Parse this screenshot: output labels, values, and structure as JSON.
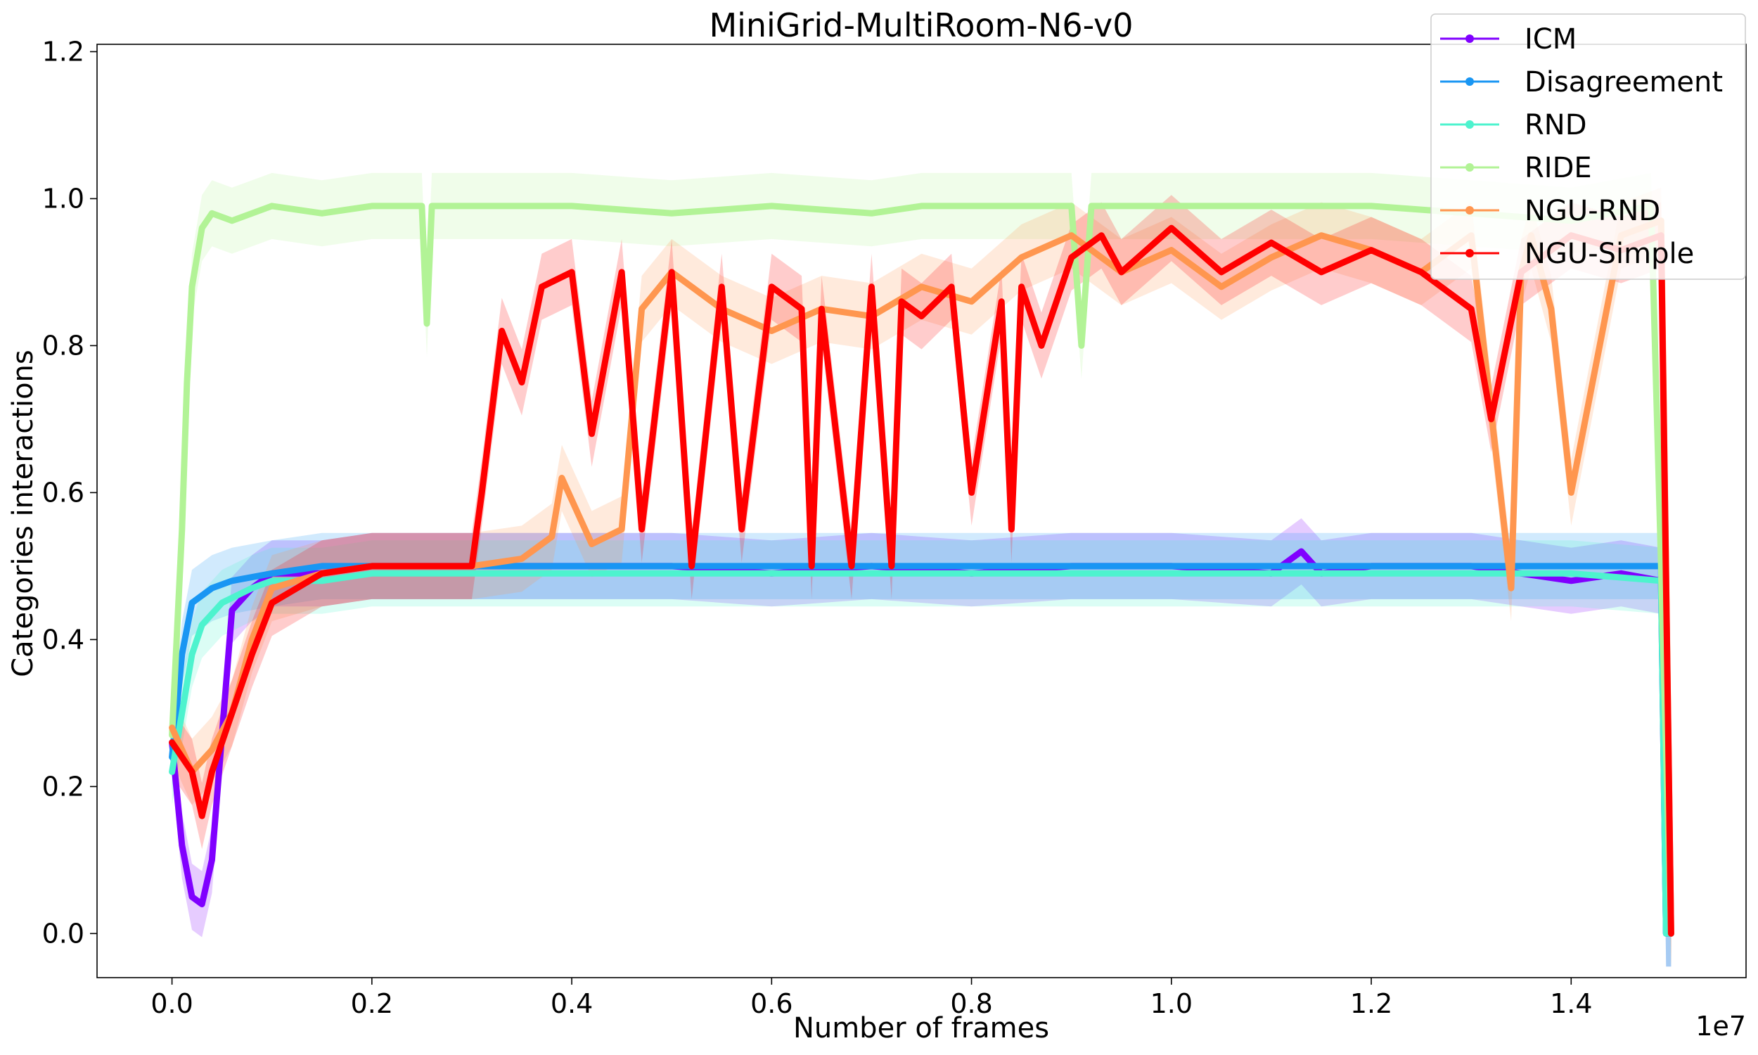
{
  "chart_data": {
    "type": "line",
    "title": "MiniGrid-MultiRoom-N6-v0",
    "xlabel": "Number of frames",
    "ylabel": "Categories interactions",
    "x_multiplier_label": "1e7",
    "xlim": [
      -0.075,
      1.575
    ],
    "ylim": [
      -0.06,
      1.21
    ],
    "x_ticks": [
      0.0,
      0.2,
      0.4,
      0.6,
      0.8,
      1.0,
      1.2,
      1.4
    ],
    "x_tick_labels": [
      "0.0",
      "0.2",
      "0.4",
      "0.6",
      "0.8",
      "1.0",
      "1.2",
      "1.4"
    ],
    "y_ticks": [
      0.0,
      0.2,
      0.4,
      0.6,
      0.8,
      1.0,
      1.2
    ],
    "y_tick_labels": [
      "0.0",
      "0.2",
      "0.4",
      "0.6",
      "0.8",
      "1.0",
      "1.2"
    ],
    "grid": false,
    "legend_position": "top-right",
    "series": [
      {
        "name": "ICM",
        "color": "#8000ff",
        "x": [
          0.0,
          0.01,
          0.02,
          0.03,
          0.04,
          0.06,
          0.08,
          0.1,
          0.15,
          0.2,
          0.3,
          0.4,
          0.5,
          0.6,
          0.7,
          0.8,
          0.9,
          1.0,
          1.1,
          1.13,
          1.15,
          1.2,
          1.3,
          1.35,
          1.4,
          1.45,
          1.49,
          1.495,
          1.5
        ],
        "y": [
          0.26,
          0.12,
          0.05,
          0.04,
          0.1,
          0.44,
          0.47,
          0.49,
          0.49,
          0.5,
          0.5,
          0.5,
          0.5,
          0.49,
          0.5,
          0.49,
          0.5,
          0.5,
          0.49,
          0.52,
          0.49,
          0.5,
          0.5,
          0.49,
          0.48,
          0.49,
          0.48,
          0.0,
          0.0
        ]
      },
      {
        "name": "Disagreement",
        "color": "#1996f3",
        "x": [
          0.0,
          0.01,
          0.02,
          0.04,
          0.06,
          0.1,
          0.15,
          0.2,
          0.3,
          0.4,
          0.5,
          0.6,
          0.7,
          0.8,
          0.9,
          1.0,
          1.1,
          1.2,
          1.3,
          1.4,
          1.49,
          1.495,
          1.5
        ],
        "y": [
          0.24,
          0.38,
          0.45,
          0.47,
          0.48,
          0.49,
          0.5,
          0.5,
          0.5,
          0.5,
          0.5,
          0.5,
          0.5,
          0.5,
          0.5,
          0.5,
          0.5,
          0.5,
          0.5,
          0.5,
          0.5,
          0.0,
          0.0
        ]
      },
      {
        "name": "RND",
        "color": "#4df3ce",
        "x": [
          0.0,
          0.01,
          0.02,
          0.03,
          0.05,
          0.08,
          0.1,
          0.15,
          0.2,
          0.3,
          0.4,
          0.5,
          0.6,
          0.7,
          0.8,
          0.9,
          1.0,
          1.1,
          1.2,
          1.3,
          1.4,
          1.49,
          1.495,
          1.5
        ],
        "y": [
          0.22,
          0.3,
          0.38,
          0.42,
          0.45,
          0.47,
          0.48,
          0.48,
          0.49,
          0.49,
          0.49,
          0.49,
          0.49,
          0.49,
          0.49,
          0.49,
          0.49,
          0.49,
          0.49,
          0.49,
          0.49,
          0.48,
          0.0,
          0.0
        ]
      },
      {
        "name": "RIDE",
        "color": "#b2f396",
        "x": [
          0.0,
          0.01,
          0.015,
          0.02,
          0.03,
          0.04,
          0.06,
          0.1,
          0.15,
          0.2,
          0.25,
          0.255,
          0.26,
          0.265,
          0.3,
          0.4,
          0.5,
          0.6,
          0.7,
          0.75,
          0.8,
          0.9,
          0.91,
          0.92,
          1.0,
          1.1,
          1.2,
          1.3,
          1.4,
          1.48,
          1.49,
          1.5
        ],
        "y": [
          0.27,
          0.55,
          0.75,
          0.88,
          0.96,
          0.98,
          0.97,
          0.99,
          0.98,
          0.99,
          0.99,
          0.83,
          0.99,
          0.99,
          0.99,
          0.99,
          0.98,
          0.99,
          0.98,
          0.99,
          0.99,
          0.99,
          0.8,
          0.99,
          0.99,
          0.99,
          0.99,
          0.98,
          0.97,
          0.99,
          0.5,
          0.0
        ]
      },
      {
        "name": "NGU-RND",
        "color": "#ff964f",
        "x": [
          0.0,
          0.02,
          0.04,
          0.06,
          0.08,
          0.1,
          0.15,
          0.2,
          0.3,
          0.35,
          0.38,
          0.39,
          0.42,
          0.45,
          0.47,
          0.5,
          0.55,
          0.6,
          0.65,
          0.7,
          0.75,
          0.8,
          0.85,
          0.9,
          0.95,
          1.0,
          1.05,
          1.1,
          1.15,
          1.2,
          1.25,
          1.3,
          1.34,
          1.35,
          1.36,
          1.38,
          1.4,
          1.45,
          1.49,
          1.5
        ],
        "y": [
          0.28,
          0.22,
          0.25,
          0.3,
          0.4,
          0.47,
          0.49,
          0.5,
          0.5,
          0.51,
          0.54,
          0.62,
          0.53,
          0.55,
          0.85,
          0.9,
          0.85,
          0.82,
          0.85,
          0.84,
          0.88,
          0.86,
          0.92,
          0.95,
          0.9,
          0.93,
          0.88,
          0.92,
          0.95,
          0.93,
          0.9,
          0.95,
          0.47,
          0.9,
          0.95,
          0.85,
          0.6,
          0.95,
          0.97,
          0.0
        ]
      },
      {
        "name": "NGU-Simple",
        "color": "#ff0000",
        "x": [
          0.0,
          0.02,
          0.03,
          0.04,
          0.06,
          0.08,
          0.1,
          0.15,
          0.2,
          0.3,
          0.31,
          0.33,
          0.35,
          0.37,
          0.4,
          0.42,
          0.45,
          0.47,
          0.5,
          0.52,
          0.55,
          0.57,
          0.6,
          0.63,
          0.64,
          0.65,
          0.68,
          0.7,
          0.72,
          0.73,
          0.75,
          0.78,
          0.8,
          0.83,
          0.84,
          0.85,
          0.87,
          0.9,
          0.93,
          0.95,
          1.0,
          1.05,
          1.1,
          1.15,
          1.2,
          1.25,
          1.3,
          1.32,
          1.35,
          1.4,
          1.45,
          1.49,
          1.5
        ],
        "y": [
          0.26,
          0.22,
          0.16,
          0.22,
          0.3,
          0.38,
          0.45,
          0.49,
          0.5,
          0.5,
          0.6,
          0.82,
          0.75,
          0.88,
          0.9,
          0.68,
          0.9,
          0.55,
          0.9,
          0.5,
          0.88,
          0.55,
          0.88,
          0.85,
          0.5,
          0.85,
          0.5,
          0.88,
          0.5,
          0.86,
          0.84,
          0.88,
          0.6,
          0.86,
          0.55,
          0.88,
          0.8,
          0.92,
          0.95,
          0.9,
          0.96,
          0.9,
          0.94,
          0.9,
          0.93,
          0.9,
          0.85,
          0.7,
          0.9,
          0.95,
          0.93,
          0.95,
          0.0
        ]
      }
    ]
  }
}
